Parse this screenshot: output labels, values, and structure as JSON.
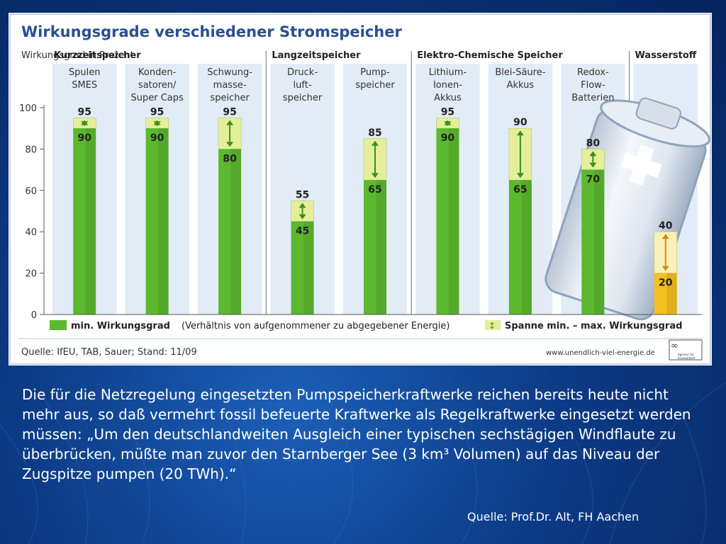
{
  "slide": {
    "body_text": "Die für die Netzregelung eingesetzten Pumpspeicherkraftwerke reichen bereits heute nicht mehr aus, so daß vermehrt fossil befeuerte Kraftwerke als Regelkraftwerke eingesetzt werden müssen: „Um den deutschlandweiten Ausgleich einer typischen sechstägigen Windflaute zu überbrücken, müßte man zuvor den Starnberger See (3 km³ Volumen) auf das Niveau der Zugspitze pumpen (20 TWh).“",
    "source": "Quelle: Prof.Dr. Alt, FH Aachen"
  },
  "chart_data": {
    "type": "bar",
    "title": "Wirkungsgrade verschiedener Stromspeicher",
    "ylabel": "Wirkungsgrad in Prozent",
    "ylim": [
      0,
      100
    ],
    "yticks": [
      0,
      20,
      40,
      60,
      80,
      100
    ],
    "groups": [
      {
        "label": "Kurzzeitspeicher",
        "start": 0,
        "end": 2
      },
      {
        "label": "Langzeitspeicher",
        "start": 3,
        "end": 4
      },
      {
        "label": "Elektro-Chemische Speicher",
        "start": 5,
        "end": 7
      },
      {
        "label": "Wasserstoff",
        "start": 8,
        "end": 8
      }
    ],
    "categories": [
      [
        "Spulen",
        "SMES"
      ],
      [
        "Konden-",
        "satoren/",
        "Super Caps"
      ],
      [
        "Schwung-",
        "masse-",
        "speicher"
      ],
      [
        "Druck-",
        "luft-",
        "speicher"
      ],
      [
        "Pump-",
        "speicher"
      ],
      [
        "Lithium-",
        "Ionen-",
        "Akkus"
      ],
      [
        "Blei-Säure-",
        "Akkus"
      ],
      [
        "Redox-",
        "Flow-",
        "Batterien"
      ],
      []
    ],
    "series": [
      {
        "name": "min. Wirkungsgrad",
        "values": [
          90,
          90,
          80,
          45,
          65,
          90,
          65,
          70,
          20
        ]
      },
      {
        "name": "max. Wirkungsgrad",
        "values": [
          95,
          95,
          95,
          55,
          85,
          95,
          90,
          80,
          40
        ]
      }
    ],
    "legend": [
      {
        "label": "min. Wirkungsgrad",
        "note": "(Verhältnis von aufgenommener zu abgegebener Energie)"
      },
      {
        "label": "Spanne min. – max. Wirkungsgrad"
      }
    ],
    "legend_position": "bottom",
    "footer_source": "Quelle: IfEU, TAB, Sauer; Stand: 11/09",
    "footer_url": "www.unendlich-viel-energie.de",
    "colors": {
      "min_bar": "#5cb82e",
      "range_bar": "#e4ef9a",
      "hydrogen_min": "#f4bf22",
      "hydrogen_range": "#faf1b8",
      "column_bg": "#e2ecf6",
      "title": "#2a4f8f"
    },
    "logo_text": "Agentur für Erneuerbare Energien"
  }
}
